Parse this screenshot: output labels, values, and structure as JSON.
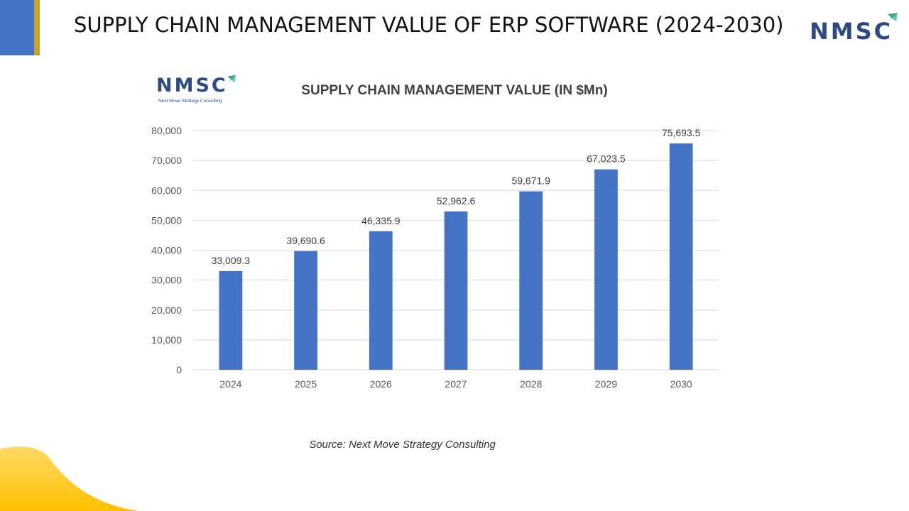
{
  "slide": {
    "title": "SUPPLY CHAIN MANAGEMENT VALUE OF ERP SOFTWARE (2024-2030)",
    "source": "Source: Next Move Strategy Consulting"
  },
  "logo": {
    "text": "NMSC",
    "tagline": "Next Move Strategy Consulting"
  },
  "colors": {
    "accent_blue": "#4472C4",
    "accent_gold": "#C9A227",
    "logo_navy": "#2E4A84",
    "logo_arrow": "#5FC7A6",
    "wave_yellow": "#FFC515"
  },
  "chart_data": {
    "type": "bar",
    "title": "SUPPLY CHAIN MANAGEMENT VALUE (IN $Mn)",
    "categories": [
      "2024",
      "2025",
      "2026",
      "2027",
      "2028",
      "2029",
      "2030"
    ],
    "values": [
      33009.3,
      39690.6,
      46335.9,
      52962.6,
      59671.9,
      67023.5,
      75693.5
    ],
    "data_labels": [
      "33,009.3",
      "39,690.6",
      "46,335.9",
      "52,962.6",
      "59,671.9",
      "67,023.5",
      "75,693.5"
    ],
    "y_ticks": [
      "0",
      "10,000",
      "20,000",
      "30,000",
      "40,000",
      "50,000",
      "60,000",
      "70,000",
      "80,000"
    ],
    "ylim": [
      0,
      80000
    ],
    "bar_color": "#4472C4",
    "grid": true,
    "legend": "none"
  }
}
